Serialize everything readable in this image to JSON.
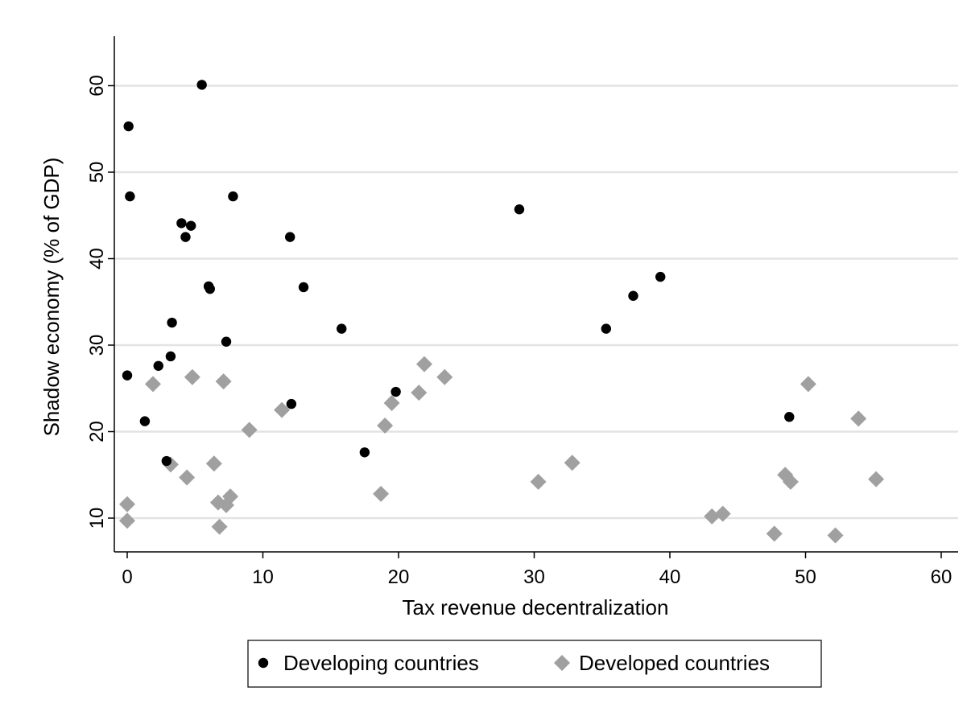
{
  "chart_data": {
    "type": "scatter",
    "xlabel": "Tax revenue decentralization",
    "ylabel": "Shadow economy (% of GDP)",
    "xlim": [
      -1,
      61
    ],
    "ylim": [
      6,
      65
    ],
    "x_ticks": [
      0,
      10,
      20,
      30,
      40,
      50,
      60
    ],
    "y_ticks": [
      10,
      20,
      30,
      40,
      50,
      60
    ],
    "grid": "horizontal",
    "legend_position": "bottom",
    "series": [
      {
        "name": "Developing countries",
        "marker": "circle",
        "color": "#000000",
        "points": [
          [
            5.5,
            60.1
          ],
          [
            0.1,
            55.3
          ],
          [
            0.2,
            47.2
          ],
          [
            7.8,
            47.2
          ],
          [
            28.9,
            45.7
          ],
          [
            4.0,
            44.1
          ],
          [
            4.7,
            43.8
          ],
          [
            4.3,
            42.5
          ],
          [
            12.0,
            42.5
          ],
          [
            39.3,
            37.9
          ],
          [
            6.0,
            36.8
          ],
          [
            6.1,
            36.5
          ],
          [
            13.0,
            36.7
          ],
          [
            37.3,
            35.7
          ],
          [
            3.3,
            32.6
          ],
          [
            15.8,
            31.9
          ],
          [
            35.3,
            31.9
          ],
          [
            7.3,
            30.4
          ],
          [
            3.2,
            28.7
          ],
          [
            2.3,
            27.6
          ],
          [
            0.0,
            26.5
          ],
          [
            19.8,
            24.6
          ],
          [
            12.1,
            23.2
          ],
          [
            1.3,
            21.2
          ],
          [
            48.8,
            21.7
          ],
          [
            17.5,
            17.6
          ],
          [
            2.9,
            16.6
          ]
        ]
      },
      {
        "name": "Developed countries",
        "marker": "diamond",
        "color": "#a0a0a0",
        "points": [
          [
            21.9,
            27.8
          ],
          [
            4.8,
            26.3
          ],
          [
            23.4,
            26.3
          ],
          [
            7.1,
            25.8
          ],
          [
            1.9,
            25.5
          ],
          [
            50.2,
            25.5
          ],
          [
            21.5,
            24.5
          ],
          [
            19.5,
            23.3
          ],
          [
            11.4,
            22.5
          ],
          [
            53.9,
            21.5
          ],
          [
            19.0,
            20.7
          ],
          [
            9.0,
            20.2
          ],
          [
            32.8,
            16.4
          ],
          [
            3.2,
            16.2
          ],
          [
            6.4,
            16.3
          ],
          [
            48.5,
            15.0
          ],
          [
            4.4,
            14.7
          ],
          [
            55.2,
            14.5
          ],
          [
            30.3,
            14.2
          ],
          [
            48.9,
            14.2
          ],
          [
            18.7,
            12.8
          ],
          [
            7.6,
            12.5
          ],
          [
            6.7,
            11.8
          ],
          [
            7.3,
            11.5
          ],
          [
            0.0,
            11.6
          ],
          [
            43.9,
            10.5
          ],
          [
            43.1,
            10.2
          ],
          [
            0.0,
            9.7
          ],
          [
            6.8,
            9.0
          ],
          [
            47.7,
            8.2
          ],
          [
            52.2,
            8.0
          ]
        ]
      }
    ]
  }
}
